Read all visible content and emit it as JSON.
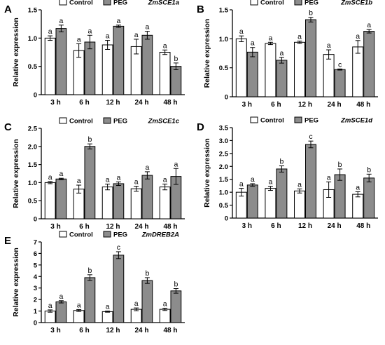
{
  "legend": {
    "control": "Control",
    "peg": "PEG"
  },
  "colors": {
    "control": "#ffffff",
    "peg": "#8c8c8c",
    "stroke": "#000000"
  },
  "chart_data": [
    {
      "panel": "A",
      "type": "bar",
      "title": "ZmSCE1a",
      "categories": [
        "3 h",
        "6 h",
        "12 h",
        "24 h",
        "48 h"
      ],
      "ylabel": "Relative expression",
      "ylim": [
        0,
        1.5
      ],
      "yticks": [
        "0",
        "0.5",
        "1.0",
        "1.5"
      ],
      "ytick_values": [
        0,
        0.5,
        1.0,
        1.5
      ],
      "series": [
        {
          "name": "Control",
          "values": [
            1.0,
            0.78,
            0.88,
            0.85,
            0.75
          ],
          "errors": [
            0.04,
            0.12,
            0.08,
            0.13,
            0.04
          ],
          "labels": [
            "a",
            "a",
            "a",
            "a",
            "a"
          ]
        },
        {
          "name": "PEG",
          "values": [
            1.17,
            0.93,
            1.21,
            1.05,
            0.5
          ],
          "errors": [
            0.06,
            0.12,
            0.02,
            0.07,
            0.06
          ],
          "labels": [
            "a",
            "a",
            "a",
            "a",
            "b"
          ]
        }
      ]
    },
    {
      "panel": "B",
      "type": "bar",
      "title": "ZmSCE1b",
      "categories": [
        "3 h",
        "6 h",
        "12 h",
        "24 h",
        "48 h"
      ],
      "ylabel": "Relative expression",
      "ylim": [
        0,
        1.5
      ],
      "yticks": [
        "0",
        "0.5",
        "1.0",
        "1.5"
      ],
      "ytick_values": [
        0,
        0.5,
        1.0,
        1.5
      ],
      "series": [
        {
          "name": "Control",
          "values": [
            1.0,
            0.92,
            0.94,
            0.73,
            0.86
          ],
          "errors": [
            0.05,
            0.02,
            0.02,
            0.08,
            0.11
          ],
          "labels": [
            "a",
            "a",
            "a",
            "a",
            "a"
          ]
        },
        {
          "name": "PEG",
          "values": [
            0.77,
            0.63,
            1.33,
            0.47,
            1.13
          ],
          "errors": [
            0.08,
            0.05,
            0.04,
            0.01,
            0.03
          ],
          "labels": [
            "a",
            "a",
            "b",
            "c",
            "a"
          ]
        }
      ]
    },
    {
      "panel": "C",
      "type": "bar",
      "title": "ZmSCE1c",
      "categories": [
        "3 h",
        "6 h",
        "12 h",
        "24 h",
        "48 h"
      ],
      "ylabel": "Relative expression",
      "ylim": [
        0,
        2.5
      ],
      "yticks": [
        "0",
        "0.5",
        "1.0",
        "1.5",
        "2.0",
        "2.5"
      ],
      "ytick_values": [
        0,
        0.5,
        1.0,
        1.5,
        2.0,
        2.5
      ],
      "series": [
        {
          "name": "Control",
          "values": [
            1.0,
            0.82,
            0.88,
            0.83,
            0.88
          ],
          "errors": [
            0.03,
            0.11,
            0.08,
            0.07,
            0.08
          ],
          "labels": [
            "a",
            "a",
            "a",
            "a",
            "a"
          ]
        },
        {
          "name": "PEG",
          "values": [
            1.1,
            2.0,
            0.97,
            1.2,
            1.17
          ],
          "errors": [
            0.02,
            0.07,
            0.05,
            0.1,
            0.22
          ],
          "labels": [
            "a",
            "b",
            "a",
            "a",
            "a"
          ]
        }
      ]
    },
    {
      "panel": "D",
      "type": "bar",
      "title": "ZmSCE1d",
      "categories": [
        "3 h",
        "6 h",
        "12 h",
        "24 h",
        "48 h"
      ],
      "ylabel": "Relative expression",
      "ylim": [
        0,
        3.5
      ],
      "yticks": [
        "0",
        "0.5",
        "1.0",
        "1.5",
        "2.0",
        "2.5",
        "3.0",
        "3.5"
      ],
      "ytick_values": [
        0,
        0.5,
        1.0,
        1.5,
        2.0,
        2.5,
        3.0,
        3.5
      ],
      "series": [
        {
          "name": "Control",
          "values": [
            1.0,
            1.15,
            1.05,
            1.1,
            0.92
          ],
          "errors": [
            0.15,
            0.08,
            0.08,
            0.3,
            0.1
          ],
          "labels": [
            "a",
            "a",
            "a",
            "a",
            "a"
          ]
        },
        {
          "name": "PEG",
          "values": [
            1.28,
            1.9,
            2.85,
            1.68,
            1.55
          ],
          "errors": [
            0.05,
            0.12,
            0.13,
            0.22,
            0.15
          ],
          "labels": [
            "a",
            "b",
            "c",
            "b",
            "b"
          ]
        }
      ]
    },
    {
      "panel": "E",
      "type": "bar",
      "title": "ZmDREB2A",
      "categories": [
        "3 h",
        "6 h",
        "12 h",
        "24 h",
        "48 h"
      ],
      "ylabel": "Relative expression",
      "ylim": [
        0,
        7
      ],
      "yticks": [
        "0",
        "1",
        "2",
        "3",
        "4",
        "5",
        "6",
        "7"
      ],
      "ytick_values": [
        0,
        1,
        2,
        3,
        4,
        5,
        6,
        7
      ],
      "series": [
        {
          "name": "Control",
          "values": [
            1.0,
            1.05,
            0.95,
            1.15,
            1.15
          ],
          "errors": [
            0.1,
            0.08,
            0.05,
            0.12,
            0.1
          ],
          "labels": [
            "a",
            "a",
            "a",
            "a",
            "a"
          ]
        },
        {
          "name": "PEG",
          "values": [
            1.8,
            3.9,
            5.85,
            3.65,
            2.75
          ],
          "errors": [
            0.1,
            0.25,
            0.3,
            0.25,
            0.2
          ],
          "labels": [
            "a",
            "b",
            "c",
            "b",
            "b"
          ]
        }
      ]
    }
  ]
}
